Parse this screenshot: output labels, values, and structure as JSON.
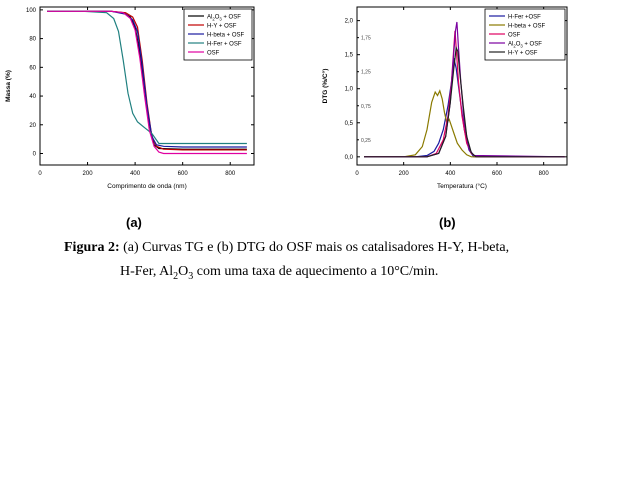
{
  "chart_data": [
    {
      "type": "line",
      "xlabel": "Comprimento de onda (nm)",
      "ylabel": "Massa (%)",
      "xlim": [
        0,
        900
      ],
      "ylim": [
        -8,
        102
      ],
      "xticks": [
        0,
        200,
        400,
        600,
        800
      ],
      "yticks": [
        0,
        20,
        40,
        60,
        80,
        100
      ],
      "legend_position": "top-right",
      "series": [
        {
          "name": "Al2O3 + OSF",
          "color": "#000000",
          "x": [
            30,
            180,
            300,
            350,
            380,
            400,
            420,
            440,
            460,
            480,
            500,
            600,
            870
          ],
          "y": [
            99,
            99,
            99,
            98,
            95,
            88,
            70,
            45,
            20,
            6,
            3.5,
            3,
            3
          ]
        },
        {
          "name": "H-Y + OSF",
          "color": "#c00000",
          "x": [
            30,
            180,
            300,
            360,
            390,
            410,
            430,
            450,
            470,
            490,
            520,
            600,
            870
          ],
          "y": [
            99,
            99,
            99,
            98,
            95,
            88,
            65,
            35,
            12,
            5,
            3,
            2.5,
            2.5
          ]
        },
        {
          "name": "H-beta + OSF",
          "color": "#1a1aa0",
          "x": [
            30,
            180,
            300,
            360,
            390,
            410,
            430,
            450,
            470,
            490,
            520,
            600,
            870
          ],
          "y": [
            99,
            99,
            99,
            97,
            93,
            85,
            62,
            33,
            12,
            6,
            5,
            4.5,
            4.5
          ]
        },
        {
          "name": "H-Fer + OSF",
          "color": "#208080",
          "x": [
            30,
            180,
            280,
            310,
            330,
            350,
            370,
            390,
            410,
            440,
            470,
            500,
            600,
            870
          ],
          "y": [
            99,
            99,
            98,
            94,
            85,
            65,
            42,
            28,
            22,
            18,
            14,
            7,
            7,
            7
          ]
        },
        {
          "name": "OSF",
          "color": "#e000a0",
          "x": [
            30,
            180,
            300,
            350,
            380,
            400,
            420,
            440,
            460,
            480,
            500,
            520,
            600,
            870
          ],
          "y": [
            99,
            99,
            99,
            98,
            94,
            86,
            66,
            40,
            16,
            5,
            1,
            0,
            0,
            0
          ]
        }
      ]
    },
    {
      "type": "line",
      "xlabel": "Temperatura (°C)",
      "ylabel": "DTG (%/C°)",
      "xlim": [
        0,
        900
      ],
      "ylim": [
        -0.12,
        2.2
      ],
      "xticks": [
        0,
        200,
        400,
        600,
        800
      ],
      "yticks": [
        0.0,
        0.5,
        1.0,
        1.5,
        2.0
      ],
      "ytick_labels": [
        "0,0",
        "0,5",
        "1,0",
        "1,5",
        "2,0"
      ],
      "yticks_minor": [
        0.25,
        0.75,
        1.25,
        1.75
      ],
      "ytick_minor_labels": [
        "0,25",
        "0,75",
        "1,25",
        "1,75"
      ],
      "legend_position": "top-right",
      "series": [
        {
          "name": "H-Fer +OSF",
          "color": "#1a1aa0",
          "x": [
            30,
            250,
            300,
            330,
            350,
            370,
            390,
            405,
            415,
            425,
            440,
            460,
            480,
            500,
            890
          ],
          "y": [
            0,
            0,
            0.02,
            0.08,
            0.2,
            0.4,
            0.75,
            1.1,
            1.45,
            1.3,
            0.9,
            0.4,
            0.1,
            0,
            0
          ]
        },
        {
          "name": "H-beta + OSF",
          "color": "#8a7a00",
          "x": [
            30,
            200,
            250,
            280,
            300,
            320,
            335,
            345,
            355,
            365,
            375,
            385,
            395,
            405,
            415,
            430,
            450,
            470,
            490,
            890
          ],
          "y": [
            0,
            0,
            0.03,
            0.15,
            0.4,
            0.8,
            0.95,
            0.9,
            0.97,
            0.85,
            0.65,
            0.5,
            0.55,
            0.45,
            0.35,
            0.2,
            0.1,
            0.03,
            0,
            0
          ]
        },
        {
          "name": "OSF",
          "color": "#e00060",
          "x": [
            30,
            300,
            340,
            370,
            390,
            405,
            415,
            420,
            425,
            435,
            450,
            470,
            490,
            510,
            890
          ],
          "y": [
            0,
            0,
            0.05,
            0.25,
            0.6,
            1.1,
            1.6,
            1.85,
            1.6,
            1.1,
            0.6,
            0.2,
            0.05,
            0,
            0
          ]
        },
        {
          "name": "Al2O3 + OSF",
          "color": "#7a00a0",
          "x": [
            30,
            300,
            350,
            380,
            400,
            412,
            422,
            428,
            435,
            445,
            460,
            480,
            500,
            890
          ],
          "y": [
            0,
            0,
            0.05,
            0.3,
            0.8,
            1.4,
            1.85,
            1.98,
            1.6,
            1.1,
            0.5,
            0.12,
            0.02,
            0
          ]
        },
        {
          "name": "H-Y + OSF",
          "color": "#202020",
          "x": [
            30,
            300,
            350,
            380,
            400,
            415,
            425,
            432,
            440,
            455,
            470,
            490,
            510,
            890
          ],
          "y": [
            0,
            0,
            0.05,
            0.3,
            0.8,
            1.3,
            1.6,
            1.55,
            1.25,
            0.75,
            0.3,
            0.06,
            0,
            0
          ]
        }
      ]
    }
  ],
  "figure": {
    "panel_a": "(a)",
    "panel_b": "(b)",
    "caption_bold": "Figura 2:",
    "caption_line1": " (a) Curvas TG e (b) DTG do OSF mais os catalisadores  H-Y, H-beta,",
    "caption_line2_pre": "H-Fer,  Al",
    "caption_sub1": "2",
    "caption_mid": "O",
    "caption_sub2": "3",
    "caption_line2_post": " com uma taxa de aquecimento a 10°C/min."
  }
}
